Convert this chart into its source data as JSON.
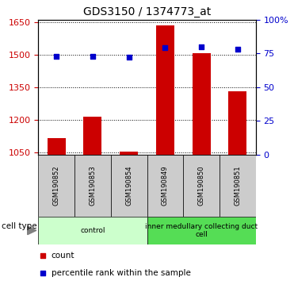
{
  "title": "GDS3150 / 1374773_at",
  "samples": [
    "GSM190852",
    "GSM190853",
    "GSM190854",
    "GSM190849",
    "GSM190850",
    "GSM190851"
  ],
  "counts": [
    1115,
    1215,
    1055,
    1635,
    1505,
    1330
  ],
  "percentiles": [
    73,
    73,
    72,
    79,
    80,
    78
  ],
  "groups": [
    {
      "label": "control",
      "indices": [
        0,
        1,
        2
      ],
      "color": "#ccffcc"
    },
    {
      "label": "inner medullary collecting duct\ncell",
      "indices": [
        3,
        4,
        5
      ],
      "color": "#55dd55"
    }
  ],
  "ylim_left": [
    1040,
    1660
  ],
  "ylim_right": [
    0,
    100
  ],
  "yticks_left": [
    1050,
    1200,
    1350,
    1500,
    1650
  ],
  "yticks_right": [
    0,
    25,
    50,
    75,
    100
  ],
  "bar_color": "#cc0000",
  "dot_color": "#0000cc",
  "bar_width": 0.5,
  "cell_type_label": "cell type",
  "legend_count_label": "count",
  "legend_pct_label": "percentile rank within the sample",
  "sample_bg_color": "#cccccc",
  "fig_width": 3.71,
  "fig_height": 3.54,
  "dpi": 100
}
